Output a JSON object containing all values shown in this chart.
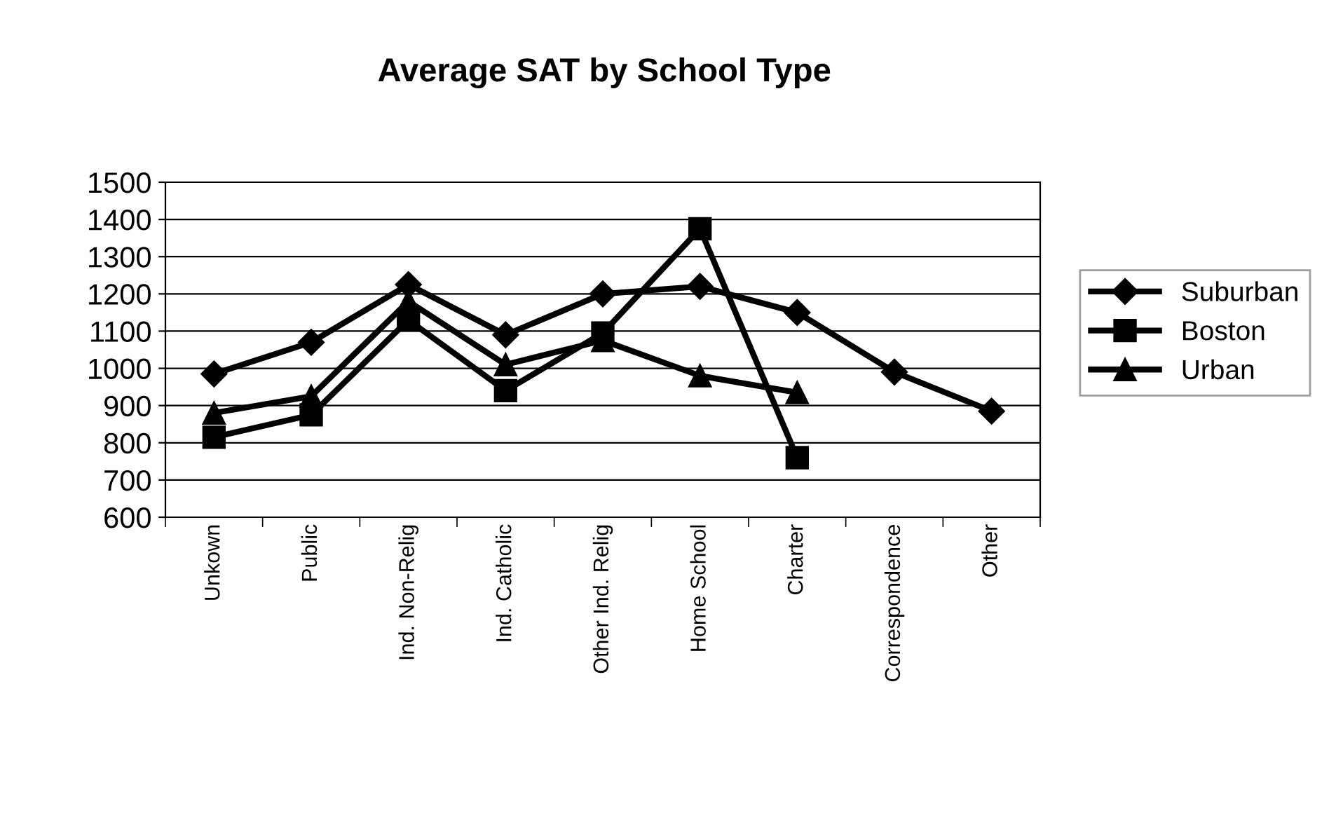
{
  "chart_data": {
    "type": "line",
    "title": "Average SAT by School Type",
    "categories": [
      "Unkown",
      "Public",
      "Ind. Non-Relig",
      "Ind. Catholic",
      "Other Ind. Relig",
      "Home School",
      "Charter",
      "Correspondence",
      "Other"
    ],
    "series": [
      {
        "name": "Suburban",
        "color": "#000000",
        "marker": "diamond",
        "values": [
          985,
          1070,
          1225,
          1090,
          1200,
          1220,
          1150,
          990,
          885
        ]
      },
      {
        "name": "Boston",
        "color": "#000000",
        "marker": "square",
        "values": [
          815,
          875,
          1130,
          940,
          1095,
          1375,
          760,
          null,
          null
        ]
      },
      {
        "name": "Urban",
        "color": "#000000",
        "marker": "triangle",
        "values": [
          880,
          925,
          1180,
          1010,
          1075,
          980,
          935,
          null,
          null
        ]
      }
    ],
    "ylim": [
      600,
      1500
    ],
    "yticks": [
      600,
      700,
      800,
      900,
      1000,
      1100,
      1200,
      1300,
      1400,
      1500
    ],
    "grid": "y",
    "legend": "right"
  }
}
